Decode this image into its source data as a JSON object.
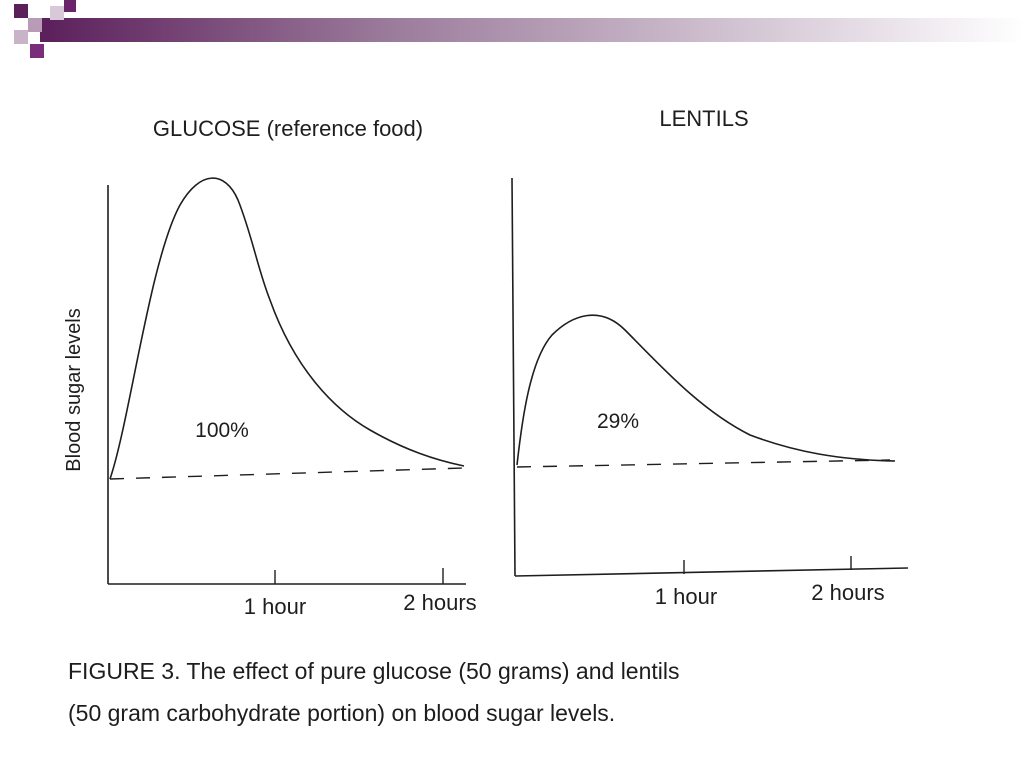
{
  "theme": {
    "accent_dark": "#5b1f5b",
    "accent_mid": "#8a5a8a",
    "accent_light": "#c9b3c9",
    "ink": "#1e1e1e"
  },
  "caption": {
    "line1": "FIGURE 3. The effect of pure glucose (50 grams) and lentils",
    "line2": "(50 gram carbohydrate portion) on blood sugar levels."
  },
  "chart_data": [
    {
      "type": "line",
      "title": "GLUCOSE (reference food)",
      "ylabel": "Blood sugar levels",
      "xlabel": "",
      "x_ticks": [
        {
          "value": 1,
          "label": "1 hour"
        },
        {
          "value": 2,
          "label": "2 hours"
        }
      ],
      "xlim": [
        0,
        2.1
      ],
      "ylim": [
        0,
        100
      ],
      "baseline": 25,
      "annotation": "100%",
      "series": [
        {
          "x": [
            0,
            0.05,
            0.15,
            0.3,
            0.45,
            0.55,
            0.65,
            0.75,
            0.85,
            1.0,
            1.2,
            1.4,
            1.6,
            1.8,
            2.0
          ],
          "y": [
            25,
            36,
            62,
            85,
            97,
            100,
            97,
            85,
            68,
            55,
            45,
            37,
            32,
            28,
            25
          ]
        }
      ]
    },
    {
      "type": "line",
      "title": "LENTILS",
      "ylabel": "",
      "xlabel": "",
      "x_ticks": [
        {
          "value": 1,
          "label": "1 hour"
        },
        {
          "value": 2,
          "label": "2 hours"
        }
      ],
      "xlim": [
        0,
        2.3
      ],
      "ylim": [
        0,
        100
      ],
      "baseline": 27,
      "annotation": "29%",
      "series": [
        {
          "x": [
            0,
            0.05,
            0.15,
            0.3,
            0.5,
            0.7,
            0.9,
            1.1,
            1.3,
            1.5,
            1.7,
            1.9,
            2.1,
            2.25
          ],
          "y": [
            27,
            40,
            55,
            63,
            66,
            62,
            54,
            45,
            38,
            33,
            30,
            28,
            27.3,
            27.3
          ]
        }
      ]
    }
  ]
}
